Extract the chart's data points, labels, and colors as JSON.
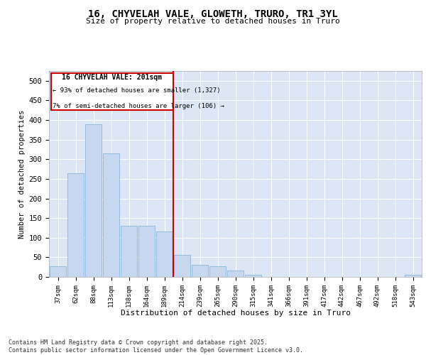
{
  "title": "16, CHYVELAH VALE, GLOWETH, TRURO, TR1 3YL",
  "subtitle": "Size of property relative to detached houses in Truro",
  "xlabel": "Distribution of detached houses by size in Truro",
  "ylabel": "Number of detached properties",
  "footer": "Contains HM Land Registry data © Crown copyright and database right 2025.\nContains public sector information licensed under the Open Government Licence v3.0.",
  "bar_color": "#c5d8f0",
  "bar_edge_color": "#7bafd4",
  "background_color": "#dce6f5",
  "grid_color": "#ffffff",
  "vline_color": "#cc0000",
  "vline_x_index": 7,
  "annotation_box_color": "#cc0000",
  "annotation_title": "16 CHYVELAH VALE: 201sqm",
  "annotation_line1": "← 93% of detached houses are smaller (1,327)",
  "annotation_line2": "7% of semi-detached houses are larger (106) →",
  "categories": [
    "37sqm",
    "62sqm",
    "88sqm",
    "113sqm",
    "138sqm",
    "164sqm",
    "189sqm",
    "214sqm",
    "239sqm",
    "265sqm",
    "290sqm",
    "315sqm",
    "341sqm",
    "366sqm",
    "391sqm",
    "417sqm",
    "442sqm",
    "467sqm",
    "492sqm",
    "518sqm",
    "543sqm"
  ],
  "values": [
    27,
    265,
    390,
    315,
    130,
    130,
    115,
    57,
    30,
    27,
    17,
    5,
    0,
    0,
    0,
    0,
    0,
    0,
    0,
    0,
    5
  ],
  "ylim": [
    0,
    525
  ],
  "yticks": [
    0,
    50,
    100,
    150,
    200,
    250,
    300,
    350,
    400,
    450,
    500
  ]
}
